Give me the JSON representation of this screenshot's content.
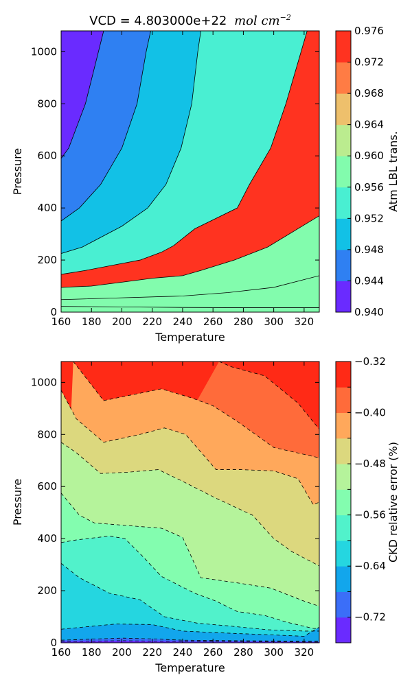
{
  "figure": {
    "title_prefix": "VCD = 4.803000e+22",
    "title_unit": "mol cm",
    "title_unit_exponent": "−2"
  },
  "chart_data": [
    {
      "type": "contour",
      "xlabel": "Temperature",
      "ylabel": "Pressure",
      "xlim": [
        160,
        330
      ],
      "ylim": [
        0,
        1080
      ],
      "xticks": [
        160,
        180,
        200,
        220,
        240,
        260,
        280,
        300,
        320
      ],
      "yticks": [
        0,
        200,
        400,
        600,
        800,
        1000
      ],
      "colorbar": {
        "label": "Atm LBL trans.",
        "levels": [
          0.94,
          0.944,
          0.948,
          0.952,
          0.956,
          0.96,
          0.964,
          0.968,
          0.972,
          0.976
        ],
        "tick_labels": [
          "0.940",
          "0.944",
          "0.948",
          "0.952",
          "0.956",
          "0.960",
          "0.964",
          "0.968",
          "0.972",
          "0.976"
        ],
        "colors": [
          "#6a2bff",
          "#2f80f2",
          "#12c1e6",
          "#49efd2",
          "#82fcad",
          "#bbec8f",
          "#eec06c",
          "#ff7c44",
          "#ff3320"
        ]
      },
      "contour_line_style": "solid",
      "contours": [
        {
          "level": 0.944,
          "points": [
            [
              160,
              590
            ],
            [
              165,
              630
            ],
            [
              176,
              800
            ],
            [
              188,
              1080
            ]
          ]
        },
        {
          "level": 0.948,
          "points": [
            [
              160,
              350
            ],
            [
              172,
              400
            ],
            [
              186,
              490
            ],
            [
              200,
              630
            ],
            [
              210,
              800
            ],
            [
              216,
              1000
            ],
            [
              219,
              1080
            ]
          ]
        },
        {
          "level": 0.952,
          "points": [
            [
              160,
              225
            ],
            [
              174,
              250
            ],
            [
              200,
              330
            ],
            [
              217,
              400
            ],
            [
              229,
              490
            ],
            [
              239,
              630
            ],
            [
              246,
              800
            ],
            [
              250,
              1000
            ],
            [
              252,
              1080
            ]
          ]
        },
        {
          "level": 0.956,
          "points": [
            [
              160,
              145
            ],
            [
              176,
              160
            ],
            [
              194,
              180
            ],
            [
              212,
              200
            ],
            [
              226,
              230
            ],
            [
              234,
              255
            ],
            [
              248,
              320
            ],
            [
              276,
              400
            ],
            [
              284,
              490
            ],
            [
              298,
              630
            ],
            [
              308,
              800
            ],
            [
              318,
              1000
            ],
            [
              322,
              1080
            ]
          ]
        },
        {
          "level": 0.96,
          "points": [
            [
              160,
              95
            ],
            [
              180,
              100
            ],
            [
              200,
              115
            ],
            [
              220,
              130
            ],
            [
              240,
              140
            ],
            [
              252,
              160
            ],
            [
              274,
              200
            ],
            [
              296,
              250
            ],
            [
              330,
              370
            ]
          ]
        },
        {
          "level": 0.964,
          "points": [
            [
              160,
              48
            ],
            [
              200,
              55
            ],
            [
              240,
              62
            ],
            [
              270,
              75
            ],
            [
              300,
              95
            ],
            [
              330,
              140
            ]
          ]
        },
        {
          "level": 0.968,
          "points": [
            [
              160,
              22
            ],
            [
              200,
              20
            ],
            [
              240,
              18
            ],
            [
              280,
              17
            ],
            [
              330,
              17
            ]
          ]
        }
      ]
    },
    {
      "type": "contour",
      "xlabel": "Temperature",
      "ylabel": "Pressure",
      "xlim": [
        160,
        330
      ],
      "ylim": [
        0,
        1080
      ],
      "xticks": [
        160,
        180,
        200,
        220,
        240,
        260,
        280,
        300,
        320
      ],
      "yticks": [
        0,
        200,
        400,
        600,
        800,
        1000
      ],
      "colorbar": {
        "label": "CKD relative error (%)",
        "levels": [
          -0.76,
          -0.72,
          -0.68,
          -0.64,
          -0.6,
          -0.56,
          -0.52,
          -0.48,
          -0.44,
          -0.4,
          -0.36,
          -0.32
        ],
        "tick_labels": [
          "",
          "−0.72",
          "",
          "−0.64",
          "",
          "−0.56",
          "",
          "−0.48",
          "",
          "−0.40",
          "",
          "−0.32"
        ],
        "colors": [
          "#6a2bff",
          "#3b6ef8",
          "#12a6ec",
          "#25d6e0",
          "#51f2cb",
          "#83fdaf",
          "#b5f39b",
          "#dcd87e",
          "#ffa85b",
          "#ff6b3a",
          "#ff2a16"
        ]
      },
      "contour_line_style": "dashed",
      "contours": [
        {
          "level": -0.72,
          "points": [
            [
              160,
              5
            ],
            [
              200,
              8
            ],
            [
              240,
              5
            ],
            [
              300,
              4
            ],
            [
              330,
              3
            ]
          ]
        },
        {
          "level": -0.68,
          "points": [
            [
              160,
              10
            ],
            [
              180,
              14
            ],
            [
              200,
              18
            ],
            [
              220,
              15
            ],
            [
              240,
              10
            ],
            [
              280,
              8
            ],
            [
              330,
              6
            ]
          ]
        },
        {
          "level": -0.64,
          "points": [
            [
              160,
              52
            ],
            [
              174,
              60
            ],
            [
              196,
              72
            ],
            [
              220,
              70
            ],
            [
              240,
              45
            ],
            [
              266,
              38
            ],
            [
              300,
              30
            ],
            [
              320,
              25
            ],
            [
              330,
              60
            ]
          ]
        },
        {
          "level": -0.6,
          "points": [
            [
              160,
              305
            ],
            [
              172,
              250
            ],
            [
              192,
              190
            ],
            [
              212,
              165
            ],
            [
              228,
              100
            ],
            [
              250,
              75
            ],
            [
              270,
              65
            ],
            [
              296,
              50
            ],
            [
              320,
              45
            ],
            [
              330,
              45
            ]
          ]
        },
        {
          "level": -0.56,
          "points": [
            [
              160,
              385
            ],
            [
              170,
              395
            ],
            [
              192,
              410
            ],
            [
              202,
              400
            ],
            [
              214,
              330
            ],
            [
              226,
              255
            ],
            [
              248,
              190
            ],
            [
              262,
              160
            ],
            [
              276,
              120
            ],
            [
              294,
              105
            ],
            [
              308,
              80
            ],
            [
              326,
              55
            ],
            [
              330,
              55
            ]
          ]
        },
        {
          "level": -0.52,
          "points": [
            [
              160,
              575
            ],
            [
              172,
              490
            ],
            [
              182,
              460
            ],
            [
              204,
              450
            ],
            [
              226,
              440
            ],
            [
              240,
              405
            ],
            [
              252,
              250
            ],
            [
              276,
              230
            ],
            [
              298,
              210
            ],
            [
              320,
              160
            ],
            [
              330,
              140
            ]
          ]
        },
        {
          "level": -0.48,
          "points": [
            [
              160,
              770
            ],
            [
              170,
              730
            ],
            [
              186,
              650
            ],
            [
              204,
              655
            ],
            [
              224,
              665
            ],
            [
              240,
              620
            ],
            [
              262,
              555
            ],
            [
              286,
              490
            ],
            [
              300,
              400
            ],
            [
              312,
              350
            ],
            [
              330,
              295
            ]
          ]
        },
        {
          "level": -0.44,
          "points": [
            [
              160,
              970
            ],
            [
              170,
              860
            ],
            [
              188,
              770
            ],
            [
              212,
              800
            ],
            [
              228,
              825
            ],
            [
              242,
              800
            ],
            [
              262,
              665
            ],
            [
              278,
              665
            ],
            [
              300,
              660
            ],
            [
              316,
              630
            ],
            [
              326,
              530
            ],
            [
              330,
              540
            ]
          ]
        },
        {
          "level": -0.4,
          "points": [
            [
              168,
              1080
            ],
            [
              188,
              930
            ],
            [
              226,
              975
            ],
            [
              246,
              940
            ],
            [
              260,
              910
            ],
            [
              276,
              850
            ],
            [
              300,
              750
            ],
            [
              330,
              710
            ],
            [
              330,
              700
            ]
          ]
        },
        {
          "level": -0.36,
          "points": [
            [
              264,
              1080
            ],
            [
              272,
              1060
            ],
            [
              294,
              1025
            ],
            [
              316,
              920
            ],
            [
              330,
              820
            ]
          ]
        }
      ]
    }
  ]
}
